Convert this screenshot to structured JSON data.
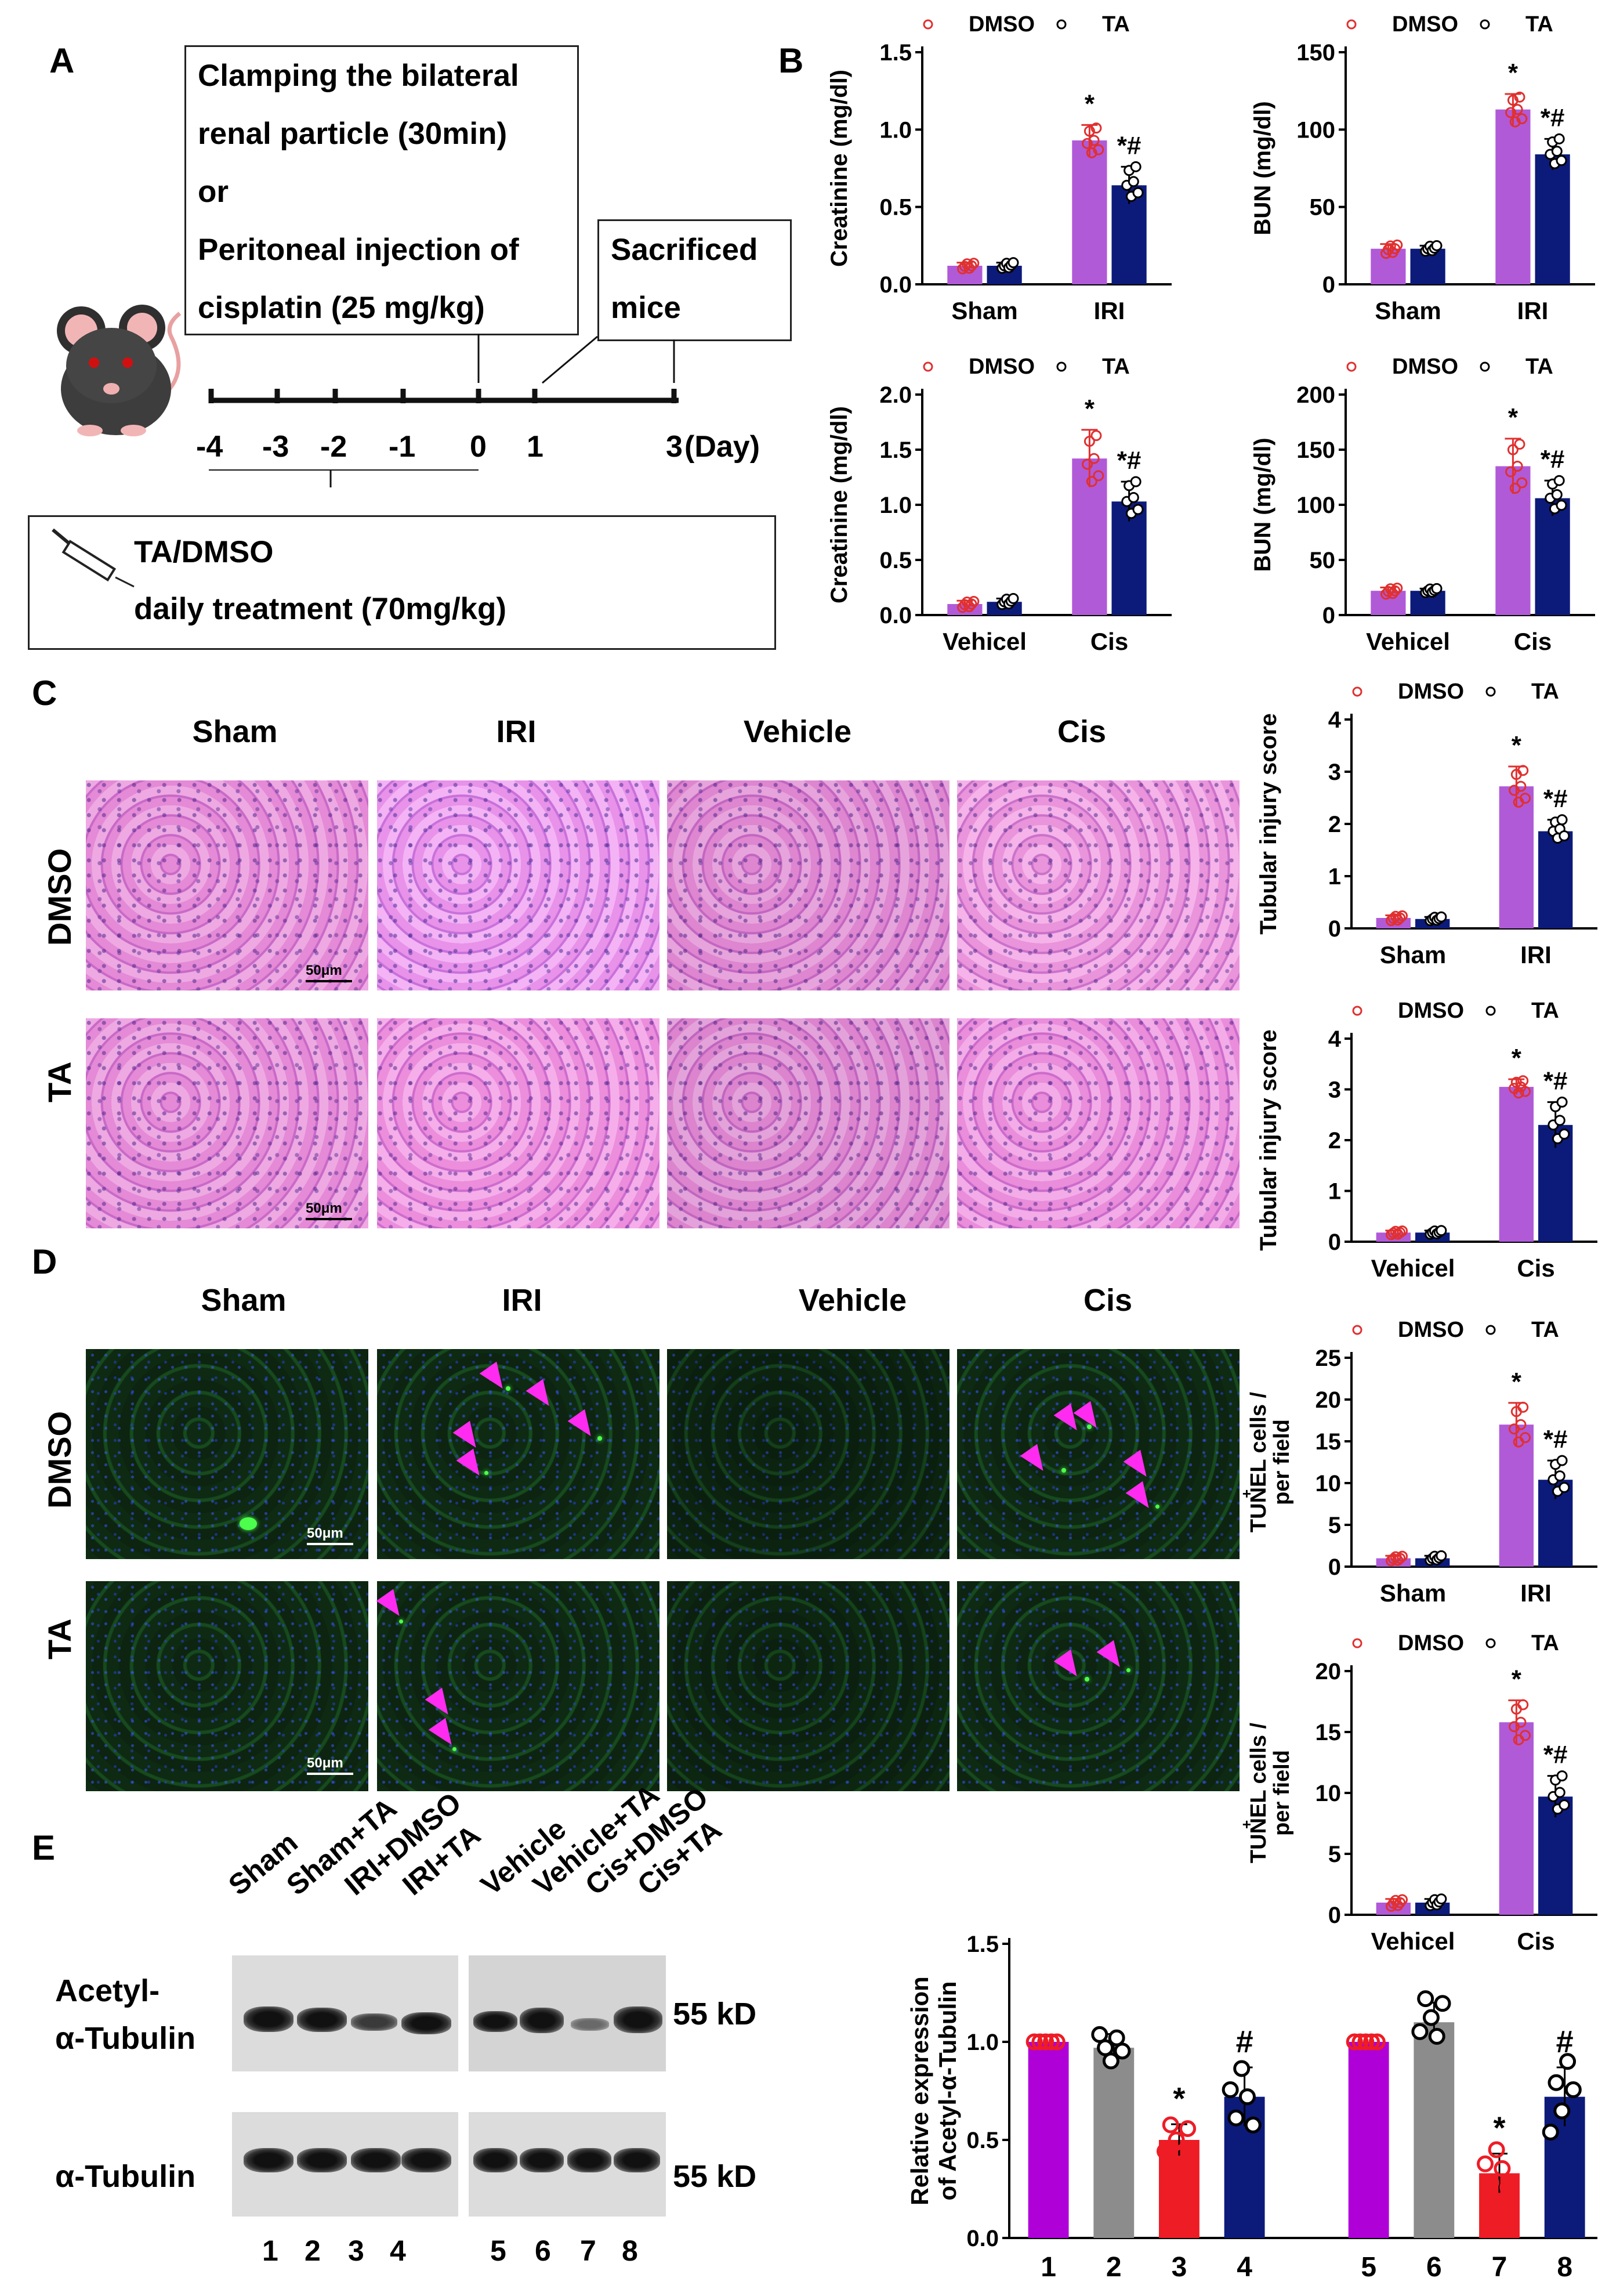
{
  "panels": {
    "A": "A",
    "B": "B",
    "C": "C",
    "D": "D",
    "E": "E"
  },
  "panelA": {
    "box1_lines": [
      "Clamping the bilateral",
      "renal particle (30min)",
      "or",
      "Peritoneal injection of",
      "cisplatin (25 mg/kg)"
    ],
    "box2_lines": [
      "Sacrificed",
      "mice"
    ],
    "timeline_ticks": [
      "-4",
      "-3",
      "-2",
      "-1",
      "0",
      "1",
      "3"
    ],
    "day_label": "(Day)",
    "treatment_line1": "TA/DMSO",
    "treatment_line2": "daily treatment (70mg/kg)",
    "colors": {
      "body": "#444444",
      "ear": "#f2b5b5",
      "eye": "#d01010"
    }
  },
  "legend": {
    "dmso": "DMSO",
    "ta": "TA"
  },
  "colors": {
    "dmso": "#b05ad8",
    "ta": "#0c1a7a",
    "dmso_dot": "#e03030",
    "grey": "#8c8c8c",
    "magenta": "#b000d8",
    "red": "#ee1c25",
    "arrow": "#ff2bf0"
  },
  "panelC": {
    "columns": [
      "Sham",
      "IRI",
      "Vehicle",
      "Cis"
    ],
    "rows": [
      "DMSO",
      "TA"
    ],
    "scale": "50μm"
  },
  "panelD": {
    "columns": [
      "Sham",
      "IRI",
      "Vehicle",
      "Cis"
    ],
    "rows": [
      "DMSO",
      "TA"
    ],
    "scale": "50μm"
  },
  "panelE": {
    "lanes_left": [
      "Sham",
      "Sham+TA",
      "IRI+DMSO",
      "IRI+TA"
    ],
    "lanes_right": [
      "Vehicle",
      "Vehicle+TA",
      "Cis+DMSO",
      "Cis+TA"
    ],
    "row1_line1": "Acetyl-",
    "row1_line2": "α-Tubulin",
    "row2": "α-Tubulin",
    "kd1": "55 kD",
    "kd2": "55 kD",
    "lane_numbers": [
      "1",
      "2",
      "3",
      "4",
      "5",
      "6",
      "7",
      "8"
    ]
  },
  "chart_data": [
    {
      "type": "bar",
      "id": "creatinine-iri",
      "categories": [
        "Sham",
        "IRI"
      ],
      "ylabel": "Creatinine (mg/dl)",
      "ylim": [
        0,
        1.5
      ],
      "yticks": [
        "0.0",
        "0.5",
        "1.0",
        "1.5"
      ],
      "series": [
        {
          "name": "DMSO",
          "values": [
            0.12,
            0.93
          ],
          "err": [
            0.02,
            0.1
          ]
        },
        {
          "name": "TA",
          "values": [
            0.12,
            0.64
          ],
          "err": [
            0.02,
            0.12
          ]
        }
      ],
      "annotations": [
        {
          "series": 0,
          "cat": 1,
          "text": "*"
        },
        {
          "series": 1,
          "cat": 1,
          "text": "*#"
        }
      ]
    },
    {
      "type": "bar",
      "id": "bun-iri",
      "categories": [
        "Sham",
        "IRI"
      ],
      "ylabel": "BUN (mg/dl)",
      "ylim": [
        0,
        150
      ],
      "yticks": [
        "0",
        "50",
        "100",
        "150"
      ],
      "series": [
        {
          "name": "DMSO",
          "values": [
            23,
            113
          ],
          "err": [
            3,
            10
          ]
        },
        {
          "name": "TA",
          "values": [
            23,
            84
          ],
          "err": [
            2,
            10
          ]
        }
      ],
      "annotations": [
        {
          "series": 0,
          "cat": 1,
          "text": "*"
        },
        {
          "series": 1,
          "cat": 1,
          "text": "*#"
        }
      ]
    },
    {
      "type": "bar",
      "id": "creatinine-cis",
      "categories": [
        "Vehicel",
        "Cis"
      ],
      "ylabel": "Creatinine (mg/dl)",
      "ylim": [
        0,
        2.0
      ],
      "yticks": [
        "0.0",
        "0.5",
        "1.0",
        "1.5",
        "2.0"
      ],
      "series": [
        {
          "name": "DMSO",
          "values": [
            0.1,
            1.42
          ],
          "err": [
            0.03,
            0.26
          ]
        },
        {
          "name": "TA",
          "values": [
            0.12,
            1.03
          ],
          "err": [
            0.03,
            0.18
          ]
        }
      ],
      "annotations": [
        {
          "series": 0,
          "cat": 1,
          "text": "*"
        },
        {
          "series": 1,
          "cat": 1,
          "text": "*#"
        }
      ]
    },
    {
      "type": "bar",
      "id": "bun-cis",
      "categories": [
        "Vehicel",
        "Cis"
      ],
      "ylabel": "BUN (mg/dl)",
      "ylim": [
        0,
        200
      ],
      "yticks": [
        "0",
        "50",
        "100",
        "150",
        "200"
      ],
      "series": [
        {
          "name": "DMSO",
          "values": [
            22,
            135
          ],
          "err": [
            3,
            25
          ]
        },
        {
          "name": "TA",
          "values": [
            22,
            106
          ],
          "err": [
            2,
            16
          ]
        }
      ],
      "annotations": [
        {
          "series": 0,
          "cat": 1,
          "text": "*"
        },
        {
          "series": 1,
          "cat": 1,
          "text": "*#"
        }
      ]
    },
    {
      "type": "bar",
      "id": "tubular-iri",
      "categories": [
        "Sham",
        "IRI"
      ],
      "ylabel": "Tubular injury score",
      "ylim": [
        0,
        4
      ],
      "yticks": [
        "0",
        "1",
        "2",
        "3",
        "4"
      ],
      "series": [
        {
          "name": "DMSO",
          "values": [
            0.2,
            2.72
          ],
          "err": [
            0.05,
            0.38
          ]
        },
        {
          "name": "TA",
          "values": [
            0.18,
            1.86
          ],
          "err": [
            0.04,
            0.22
          ]
        }
      ],
      "annotations": [
        {
          "series": 0,
          "cat": 1,
          "text": "*"
        },
        {
          "series": 1,
          "cat": 1,
          "text": "*#"
        }
      ]
    },
    {
      "type": "bar",
      "id": "tubular-cis",
      "categories": [
        "Vehicel",
        "Cis"
      ],
      "ylabel": "Tubular injury score",
      "ylim": [
        0,
        4
      ],
      "yticks": [
        "0",
        "1",
        "2",
        "3",
        "4"
      ],
      "series": [
        {
          "name": "DMSO",
          "values": [
            0.18,
            3.05
          ],
          "err": [
            0.04,
            0.15
          ]
        },
        {
          "name": "TA",
          "values": [
            0.18,
            2.3
          ],
          "err": [
            0.04,
            0.45
          ]
        }
      ],
      "annotations": [
        {
          "series": 0,
          "cat": 1,
          "text": "*"
        },
        {
          "series": 1,
          "cat": 1,
          "text": "*#"
        }
      ]
    },
    {
      "type": "bar",
      "id": "tunel-iri",
      "categories": [
        "Sham",
        "IRI"
      ],
      "ylabel_line1": "TUNEL  cells /",
      "ylabel_sup": "+",
      "ylabel_line2": "per field",
      "ylim": [
        0,
        25
      ],
      "yticks": [
        "0",
        "5",
        "10",
        "15",
        "20",
        "25"
      ],
      "series": [
        {
          "name": "DMSO",
          "values": [
            1,
            17
          ],
          "err": [
            0.3,
            2.6
          ]
        },
        {
          "name": "TA",
          "values": [
            1,
            10.4
          ],
          "err": [
            0.3,
            2.3
          ]
        }
      ],
      "annotations": [
        {
          "series": 0,
          "cat": 1,
          "text": "*"
        },
        {
          "series": 1,
          "cat": 1,
          "text": "*#"
        }
      ]
    },
    {
      "type": "bar",
      "id": "tunel-cis",
      "categories": [
        "Vehicel",
        "Cis"
      ],
      "ylabel_line1": "TUNEL  cells /",
      "ylabel_sup": "+",
      "ylabel_line2": "per field",
      "ylim": [
        0,
        20
      ],
      "yticks": [
        "0",
        "5",
        "10",
        "15",
        "20"
      ],
      "series": [
        {
          "name": "DMSO",
          "values": [
            1,
            15.8
          ],
          "err": [
            0.3,
            1.8
          ]
        },
        {
          "name": "TA",
          "values": [
            1,
            9.7
          ],
          "err": [
            0.3,
            1.7
          ]
        }
      ],
      "annotations": [
        {
          "series": 0,
          "cat": 1,
          "text": "*"
        },
        {
          "series": 1,
          "cat": 1,
          "text": "*#"
        }
      ]
    },
    {
      "type": "bar",
      "id": "acetyl-tubulin",
      "categories": [
        "1",
        "2",
        "3",
        "4",
        "5",
        "6",
        "7",
        "8"
      ],
      "ylabel_line1": "Relative expression",
      "ylabel_line2": "of Acetyl-α-Tubulin",
      "ylim": [
        0,
        1.5
      ],
      "yticks": [
        "0.0",
        "0.5",
        "1.0",
        "1.5"
      ],
      "values": [
        1.0,
        0.97,
        0.5,
        0.72,
        1.0,
        1.1,
        0.33,
        0.72
      ],
      "err": [
        0.0,
        0.07,
        0.08,
        0.15,
        0.0,
        0.1,
        0.1,
        0.15
      ],
      "annotations": [
        {
          "cat": 2,
          "text": "*"
        },
        {
          "cat": 3,
          "text": "#"
        },
        {
          "cat": 6,
          "text": "*"
        },
        {
          "cat": 7,
          "text": "#"
        }
      ]
    }
  ]
}
